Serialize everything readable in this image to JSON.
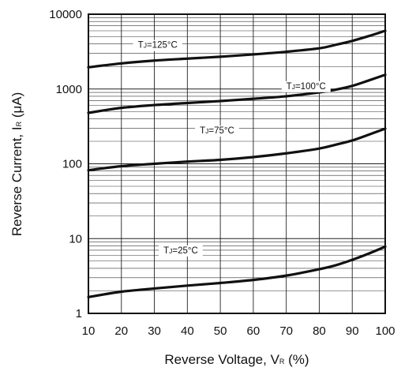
{
  "chart_data": {
    "type": "line",
    "x_scale": "linear",
    "y_scale": "log",
    "xlim": [
      10,
      100
    ],
    "ylim": [
      1,
      10000
    ],
    "grid": true,
    "xlabel_main": "Reverse Voltage, V",
    "xlabel_sub": "R",
    "xlabel_tail": " (%)",
    "ylabel_main": "Reverse Current, I",
    "ylabel_sub": "R",
    "ylabel_tail": " (μA)",
    "x_ticks": [
      10,
      20,
      30,
      40,
      50,
      60,
      70,
      80,
      90,
      100
    ],
    "x_tick_labels": [
      "10",
      "20",
      "30",
      "40",
      "50",
      "60",
      "70",
      "80",
      "90",
      "100"
    ],
    "y_ticks": [
      1,
      10,
      100,
      1000,
      10000
    ],
    "y_tick_labels": [
      "1",
      "10",
      "100",
      "1000",
      "10000"
    ],
    "series": [
      {
        "name_main": "T",
        "name_sub": "J",
        "name_tail": "=125°C",
        "label_at": [
          31,
          3900
        ],
        "x": [
          10,
          20,
          30,
          40,
          50,
          60,
          70,
          80,
          85,
          90,
          95,
          100
        ],
        "y": [
          1950,
          2200,
          2400,
          2550,
          2700,
          2900,
          3150,
          3500,
          3900,
          4400,
          5100,
          6000
        ]
      },
      {
        "name_main": "T",
        "name_sub": "J",
        "name_tail": "=100°C",
        "label_at": [
          76,
          1100
        ],
        "x": [
          10,
          20,
          30,
          40,
          50,
          60,
          70,
          80,
          85,
          90,
          95,
          100
        ],
        "y": [
          480,
          560,
          610,
          650,
          690,
          740,
          800,
          900,
          980,
          1100,
          1300,
          1550
        ]
      },
      {
        "name_main": "T",
        "name_sub": "J",
        "name_tail": "=75°C",
        "label_at": [
          49,
          280
        ],
        "x": [
          10,
          20,
          30,
          40,
          50,
          60,
          70,
          80,
          85,
          90,
          95,
          100
        ],
        "y": [
          82,
          93,
          100,
          107,
          113,
          123,
          138,
          160,
          180,
          205,
          245,
          295
        ]
      },
      {
        "name_main": "T",
        "name_sub": "J",
        "name_tail": "=25°C",
        "label_at": [
          38,
          7
        ],
        "x": [
          10,
          20,
          30,
          40,
          50,
          60,
          70,
          80,
          85,
          90,
          95,
          100
        ],
        "y": [
          1.65,
          1.95,
          2.15,
          2.35,
          2.55,
          2.8,
          3.2,
          3.9,
          4.4,
          5.2,
          6.3,
          7.8
        ]
      }
    ]
  }
}
